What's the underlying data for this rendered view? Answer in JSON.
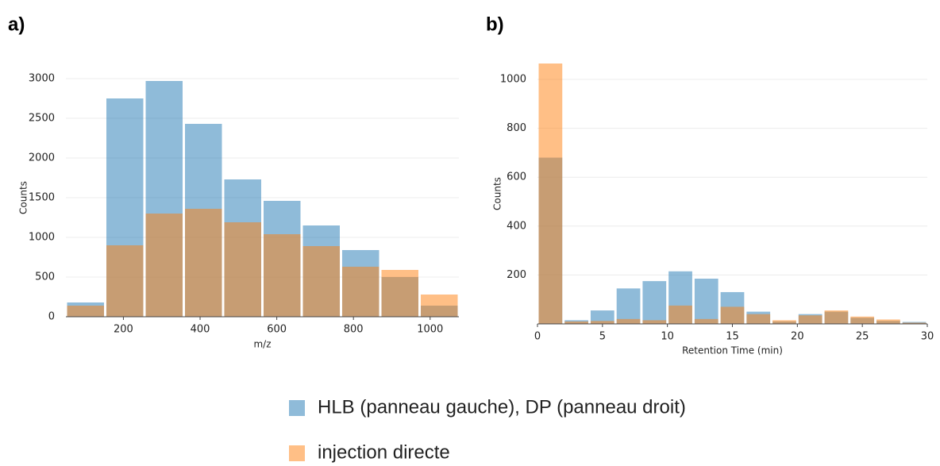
{
  "chart_data": [
    {
      "type": "histogram",
      "label": "a)",
      "x_label": "m/z",
      "y_label": "Counts",
      "bins": [
        50,
        152.5,
        255,
        357.5,
        460,
        562.5,
        665,
        767.5,
        870,
        972.5,
        1075
      ],
      "series": [
        {
          "name": "HLB (panneau gauche), DP (panneau droit)",
          "color": "#1f77b4",
          "values": [
            180,
            2750,
            2970,
            2430,
            1730,
            1460,
            1150,
            840,
            500,
            140
          ]
        },
        {
          "name": "injection directe",
          "color": "#ff7f0e",
          "values": [
            140,
            900,
            1300,
            1360,
            1190,
            1040,
            890,
            630,
            590,
            280
          ]
        }
      ],
      "xlim": [
        50,
        1075
      ],
      "xticks": [
        200,
        400,
        600,
        800,
        1000
      ],
      "ylim": [
        0,
        3000
      ],
      "yticks": [
        0,
        500,
        1000,
        1500,
        2000,
        2500,
        3000
      ],
      "grid": true
    },
    {
      "type": "histogram",
      "label": "b)",
      "x_label": "Retention Time (min)",
      "y_label": "Counts",
      "bins": [
        0,
        2,
        4,
        6,
        8,
        10,
        12,
        14,
        16,
        18,
        20,
        22,
        24,
        26,
        28,
        30
      ],
      "series": [
        {
          "color": "#1f77b4",
          "values": [
            680,
            15,
            55,
            145,
            175,
            215,
            185,
            130,
            50,
            10,
            40,
            50,
            25,
            12,
            8
          ]
        },
        {
          "color": "#ff7f0e",
          "values": [
            1065,
            10,
            12,
            20,
            15,
            75,
            20,
            70,
            40,
            15,
            35,
            55,
            30,
            18,
            5
          ]
        }
      ],
      "xlim": [
        0,
        30
      ],
      "xticks": [
        0,
        5,
        10,
        15,
        20,
        25,
        30
      ],
      "ylim": [
        0,
        1065
      ],
      "yticks": [
        200,
        400,
        600,
        800,
        1000
      ],
      "grid": true
    }
  ]
}
